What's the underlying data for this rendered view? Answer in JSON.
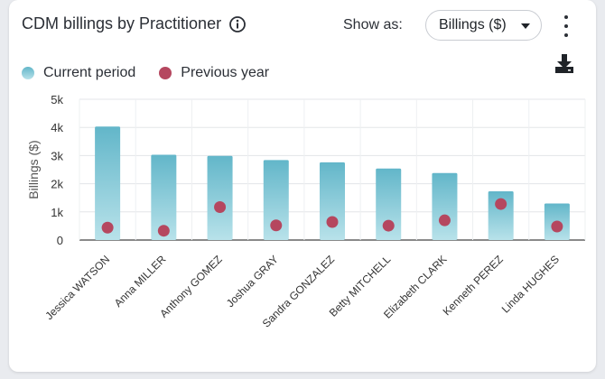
{
  "header": {
    "title": "CDM billings by Practitioner",
    "show_as_label": "Show as:",
    "dropdown_value": "Billings ($)"
  },
  "icons": {
    "info": "info-icon",
    "more": "kebab-menu-icon",
    "download": "download-icon"
  },
  "colors": {
    "bar_top": "#62b6c9",
    "bar_bottom": "#b8e2ea",
    "previous_dot": "#b5475f"
  },
  "chart_data": {
    "type": "bar",
    "categories": [
      "Jessica WATSON",
      "Anna MILLER",
      "Anthony GOMEZ",
      "Joshua GRAY",
      "Sandra GONZALEZ",
      "Betty MITCHELL",
      "Elizabeth CLARK",
      "Kenneth PEREZ",
      "Linda HUGHES"
    ],
    "series": [
      {
        "name": "Current period",
        "type": "bar",
        "values": [
          4030,
          3030,
          2990,
          2840,
          2760,
          2540,
          2380,
          1730,
          1300
        ]
      },
      {
        "name": "Previous year",
        "type": "scatter",
        "values": [
          440,
          330,
          1170,
          520,
          640,
          510,
          700,
          1280,
          480
        ]
      }
    ],
    "ylabel": "Billings ($)",
    "xlabel": "",
    "ylim": [
      0,
      5000
    ],
    "yticks": [
      0,
      1000,
      2000,
      3000,
      4000,
      5000
    ],
    "ytick_labels": [
      "0",
      "1k",
      "2k",
      "3k",
      "4k",
      "5k"
    ],
    "grid": true,
    "legend": "top-left"
  }
}
